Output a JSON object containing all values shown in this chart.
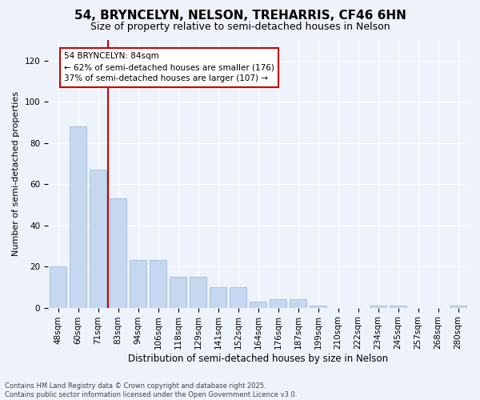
{
  "title1": "54, BRYNCELYN, NELSON, TREHARRIS, CF46 6HN",
  "title2": "Size of property relative to semi-detached houses in Nelson",
  "xlabel": "Distribution of semi-detached houses by size in Nelson",
  "ylabel": "Number of semi-detached properties",
  "categories": [
    "48sqm",
    "60sqm",
    "71sqm",
    "83sqm",
    "94sqm",
    "106sqm",
    "118sqm",
    "129sqm",
    "141sqm",
    "152sqm",
    "164sqm",
    "176sqm",
    "187sqm",
    "199sqm",
    "210sqm",
    "222sqm",
    "234sqm",
    "245sqm",
    "257sqm",
    "268sqm",
    "280sqm"
  ],
  "values": [
    20,
    88,
    67,
    53,
    23,
    23,
    15,
    15,
    10,
    10,
    3,
    4,
    4,
    1,
    0,
    0,
    1,
    1,
    0,
    0,
    1
  ],
  "bar_color": "#c5d8f0",
  "bar_edge_color": "#a0bcd8",
  "vline_color": "#cc0000",
  "vline_x_index": 2.5,
  "annotation_text": "54 BRYNCELYN: 84sqm\n← 62% of semi-detached houses are smaller (176)\n37% of semi-detached houses are larger (107) →",
  "annotation_box_facecolor": "#ffffff",
  "annotation_box_edgecolor": "#cc0000",
  "background_color": "#eef2fa",
  "ylim": [
    0,
    130
  ],
  "yticks": [
    0,
    20,
    40,
    60,
    80,
    100,
    120
  ],
  "footer_text": "Contains HM Land Registry data © Crown copyright and database right 2025.\nContains public sector information licensed under the Open Government Licence v3.0.",
  "grid_color": "#ffffff",
  "title1_fontsize": 11,
  "title2_fontsize": 9,
  "xlabel_fontsize": 8.5,
  "ylabel_fontsize": 8,
  "tick_fontsize": 7.5,
  "annotation_fontsize": 7.5,
  "footer_fontsize": 6
}
